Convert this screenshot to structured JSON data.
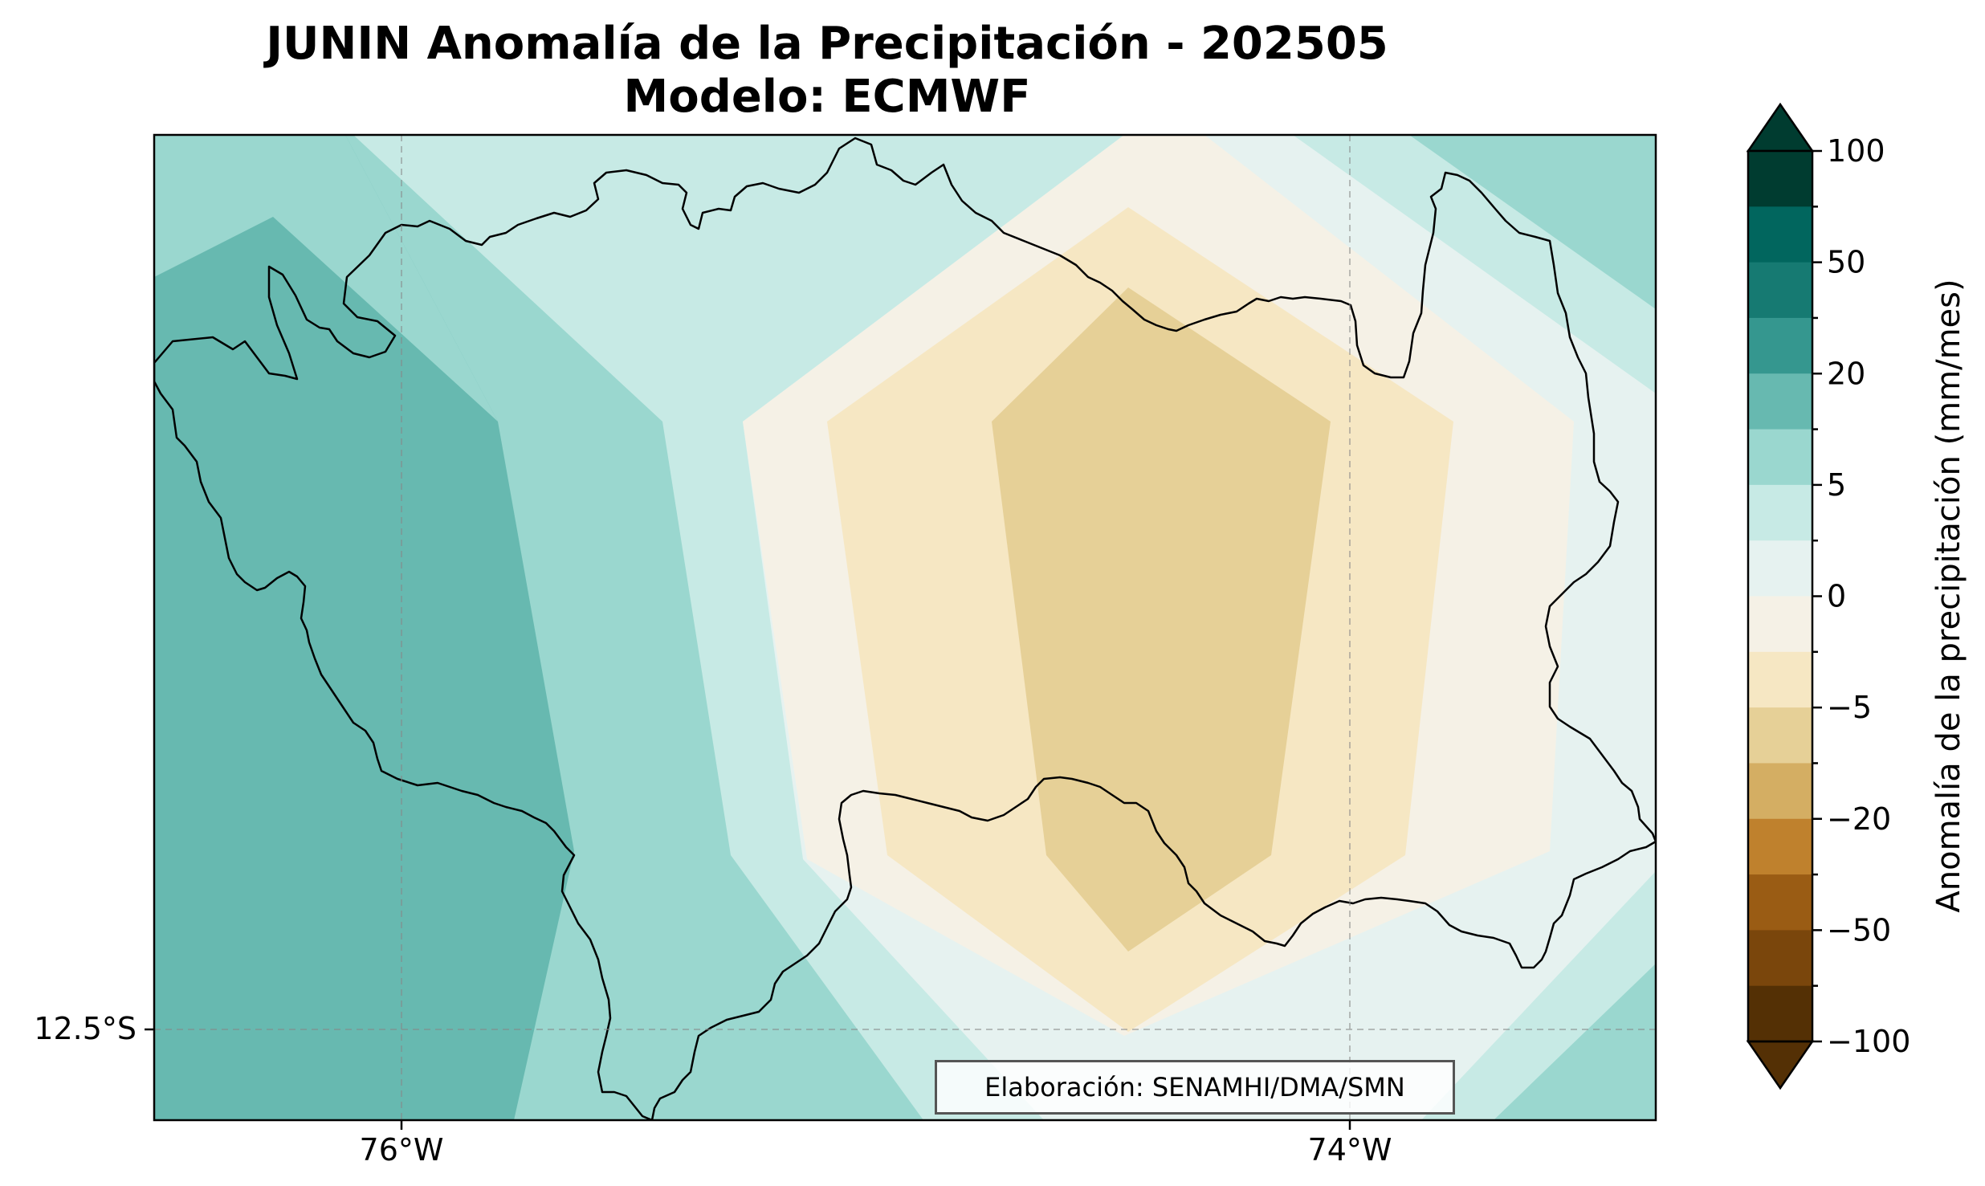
{
  "title_line1": "JUNIN Anomalía de la Precipitación - 202505",
  "title_line2": "Modelo: ECMWF",
  "axes": {
    "x_ticks": [
      "76°W",
      "74°W"
    ],
    "y_ticks": [
      "12.5°S"
    ]
  },
  "colorbar": {
    "label": "Anomalía de la precipitación (mm/mes)",
    "tick_labels": [
      "100",
      "50",
      "20",
      "5",
      "0",
      "−5",
      "−20",
      "−50",
      "−100"
    ],
    "colors": [
      "#003c30",
      "#01665e",
      "#167a72",
      "#35978f",
      "#67b9b0",
      "#9ad7cf",
      "#c7eae5",
      "#e6f2f0",
      "#f5f1e6",
      "#f6e7c3",
      "#e6d097",
      "#d4ae63",
      "#bf812d",
      "#9a5c14",
      "#7a460c",
      "#543005"
    ]
  },
  "credit": "Elaboración: SENAMHI/DMA/SMN",
  "map_colors": {
    "teal_dark": "#67b9b0",
    "teal_mid": "#9ad7cf",
    "teal_light": "#c7eae5",
    "pale": "#e6f2f0",
    "cream": "#f5f1e6",
    "tan_light": "#f6e7c3",
    "tan": "#e6d097",
    "outline": "#000000"
  }
}
